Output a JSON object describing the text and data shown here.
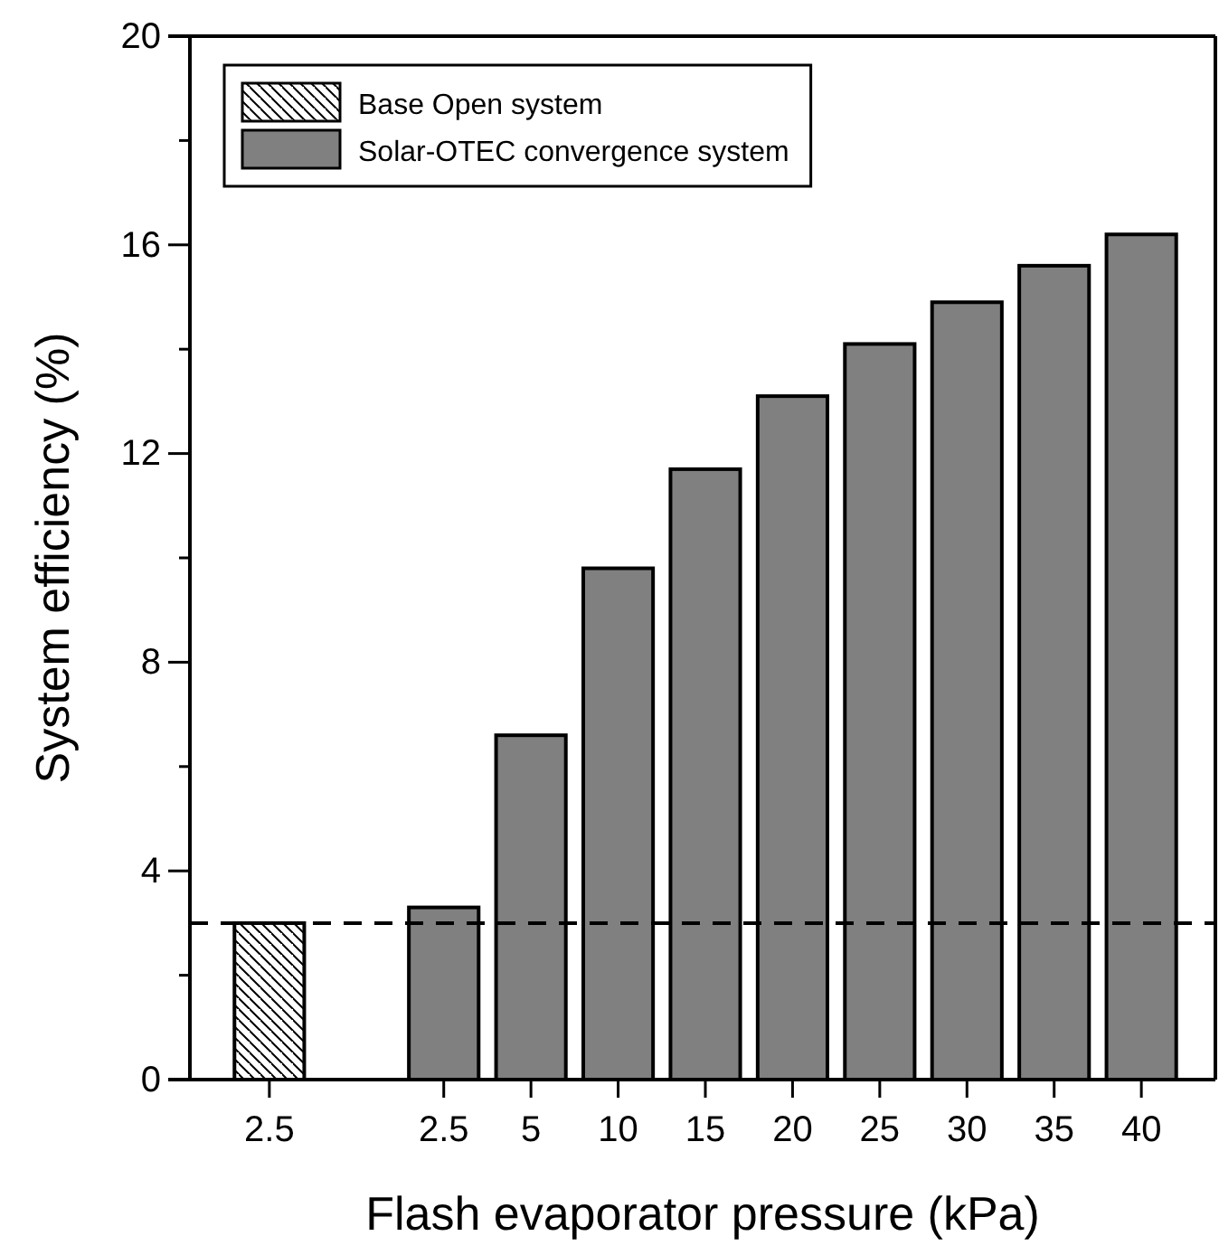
{
  "chart_data": {
    "type": "bar",
    "xlabel": "Flash evaporator pressure (kPa)",
    "ylabel": "System efficiency (%)",
    "categories": [
      "2.5",
      null,
      "2.5",
      "5",
      "10",
      "15",
      "20",
      "25",
      "30",
      "35",
      "40"
    ],
    "series": [
      {
        "name": "Base Open system",
        "color": "#000000",
        "values": [
          3.0,
          null,
          null,
          null,
          null,
          null,
          null,
          null,
          null,
          null,
          null
        ]
      },
      {
        "name": "Solar-OTEC convergence system",
        "color": "#808080",
        "values": [
          null,
          null,
          3.3,
          6.6,
          9.8,
          11.7,
          13.1,
          14.1,
          14.9,
          15.6,
          16.2
        ]
      }
    ],
    "ylim": [
      0,
      20
    ],
    "yticks": [
      0,
      {
        "value": 2,
        "label": null
      },
      4,
      {
        "value": 6,
        "label": null
      },
      8,
      {
        "value": 10,
        "label": null
      },
      12,
      {
        "value": 14,
        "label": null
      },
      16,
      {
        "value": 18,
        "label": null
      },
      20
    ],
    "ref_lines": [
      {
        "axis": "y",
        "value": 3,
        "line_style": "dashed",
        "color": "#000000"
      }
    ],
    "legend": "top left",
    "grid": false
  }
}
